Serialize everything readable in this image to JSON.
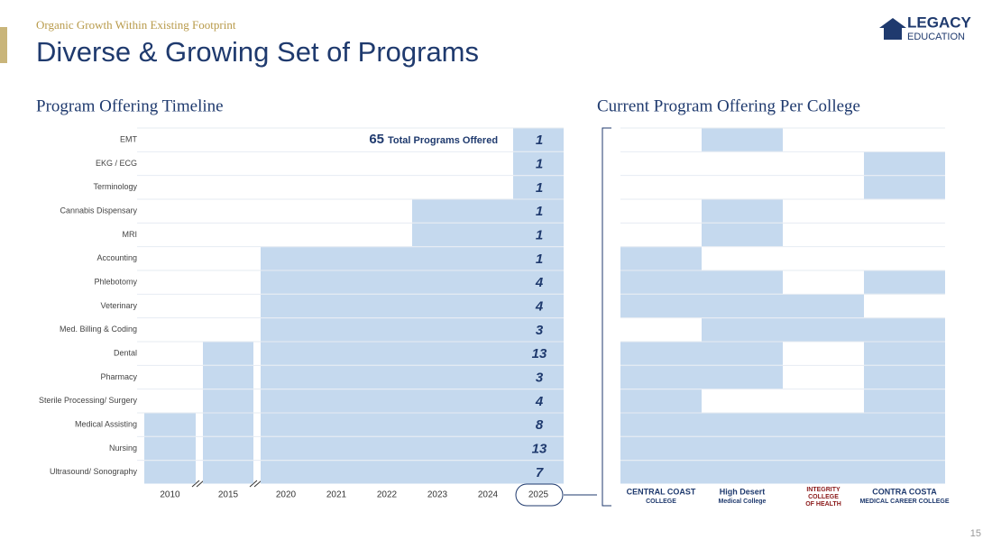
{
  "header": {
    "kicker": "Organic Growth Within Existing Footprint",
    "title": "Diverse & Growing Set of Programs",
    "logo_top": "LEGACY",
    "logo_bottom": "EDUCATION"
  },
  "timeline": {
    "title": "Program Offering Timeline",
    "total": 65,
    "total_label": "Total Programs Offered",
    "years": [
      "2010",
      "2015",
      "2020",
      "2021",
      "2022",
      "2023",
      "2024",
      "2025"
    ],
    "programs": [
      {
        "name": "EMT",
        "start": "2025",
        "count": 1
      },
      {
        "name": "EKG / ECG",
        "start": "2025",
        "count": 1
      },
      {
        "name": "Terminology",
        "start": "2025",
        "count": 1
      },
      {
        "name": "Cannabis Dispensary",
        "start": "2023",
        "count": 1
      },
      {
        "name": "MRI",
        "start": "2023",
        "count": 1
      },
      {
        "name": "Accounting",
        "start": "2020",
        "count": 1
      },
      {
        "name": "Phlebotomy",
        "start": "2020",
        "count": 4
      },
      {
        "name": "Veterinary",
        "start": "2020",
        "count": 4
      },
      {
        "name": "Med. Billing & Coding",
        "start": "2020",
        "count": 3
      },
      {
        "name": "Dental",
        "start": "2015",
        "count": 13
      },
      {
        "name": "Pharmacy",
        "start": "2015",
        "count": 3
      },
      {
        "name": "Sterile Processing/ Surgery",
        "start": "2015",
        "count": 4
      },
      {
        "name": "Medical Assisting",
        "start": "2010",
        "count": 8
      },
      {
        "name": "Nursing",
        "start": "2010",
        "count": 13
      },
      {
        "name": "Ultrasound/ Sonography",
        "start": "2010",
        "count": 7
      }
    ]
  },
  "colleges": {
    "title": "Current Program Offering Per College",
    "names": [
      [
        "CENTRAL COAST",
        "COLLEGE"
      ],
      [
        "High Desert",
        "Medical College"
      ],
      [
        "INTEGRITY",
        "COLLEGE",
        "OF HEALTH"
      ],
      [
        "CONTRA COSTA",
        "MEDICAL CAREER COLLEGE"
      ]
    ],
    "offered": [
      [
        false,
        true,
        false,
        false
      ],
      [
        false,
        false,
        false,
        true
      ],
      [
        false,
        false,
        false,
        true
      ],
      [
        false,
        true,
        false,
        false
      ],
      [
        false,
        true,
        false,
        false
      ],
      [
        true,
        false,
        false,
        false
      ],
      [
        true,
        true,
        false,
        true
      ],
      [
        true,
        true,
        true,
        false
      ],
      [
        false,
        true,
        true,
        true
      ],
      [
        true,
        true,
        false,
        true
      ],
      [
        true,
        true,
        false,
        true
      ],
      [
        true,
        false,
        false,
        true
      ],
      [
        true,
        true,
        true,
        true
      ],
      [
        true,
        true,
        true,
        true
      ],
      [
        true,
        true,
        true,
        true
      ]
    ]
  },
  "page_number": "15"
}
